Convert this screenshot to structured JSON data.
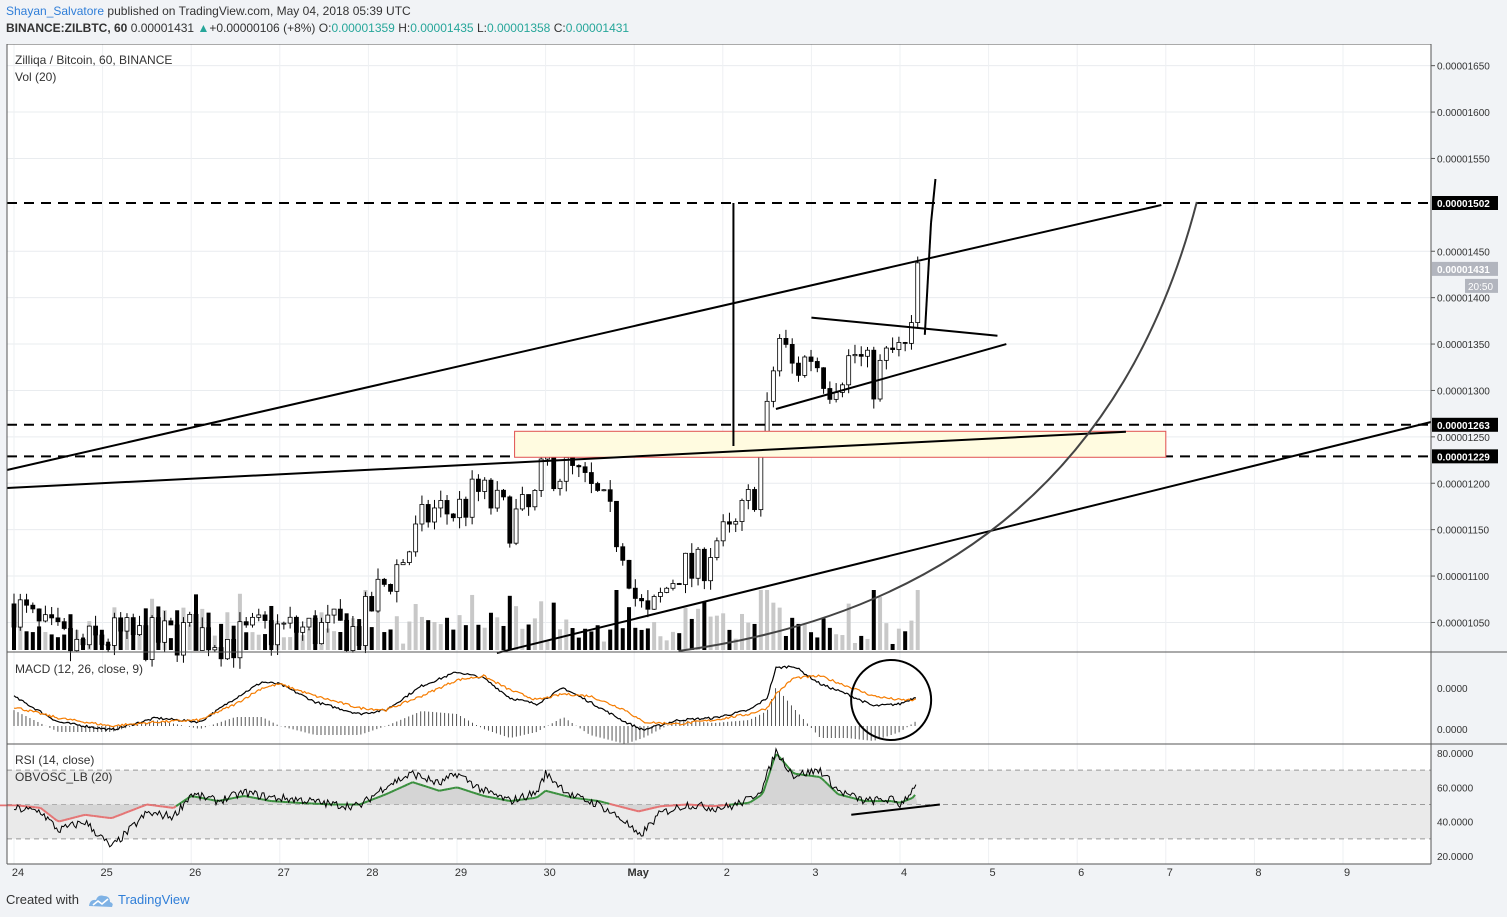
{
  "header": {
    "author": "Shayan_Salvatore",
    "published": "published on TradingView.com, May 04, 2018 05:39 UTC",
    "symbol": "BINANCE:ZILBTC, 60",
    "last": "0.00001431",
    "change": "+0.00000106 (+8%)",
    "o_label": "O:",
    "o_value": "0.00001359",
    "h_label": "H:",
    "h_value": "0.00001435",
    "l_label": "L:",
    "l_value": "0.00001358",
    "c_label": "C:",
    "c_value": "0.00001431"
  },
  "footer": {
    "created_with": "Created with",
    "brand": "TradingView"
  },
  "colors": {
    "background": "#ffffff",
    "axis_bg": "#f1f3f6",
    "up_candle": "#ffffff",
    "down_candle": "#000000",
    "macd_line": "#000000",
    "signal_line": "#f57c00",
    "rsi_line": "#000000",
    "obv_positive": "#388e3c",
    "obv_negative": "#e57373",
    "zone_fill": "#fffbe0",
    "zone_border": "#e05050"
  },
  "chart_data": [
    {
      "type": "candlestick",
      "title": "Zilliqa / Bitcoin, 60, BINANCE",
      "volume_label": "Vol (20)",
      "x_ticks": [
        "24",
        "25",
        "26",
        "27",
        "28",
        "29",
        "30",
        "May",
        "2",
        "3",
        "4",
        "5",
        "6",
        "7",
        "8",
        "9"
      ],
      "y_ticks": [
        "0.00001650",
        "0.00001600",
        "0.00001550",
        "0.00001450",
        "0.00001400",
        "0.00001350",
        "0.00001300",
        "0.00001250",
        "0.00001200",
        "0.00001150",
        "0.00001100",
        "0.00001050"
      ],
      "ylim": [
        1.02e-05,
        1.68e-05
      ],
      "price_labels": [
        {
          "value": 1.502e-05,
          "text": "0.00001502",
          "style": "black"
        },
        {
          "value": 1.431e-05,
          "text": "0.00001431",
          "style": "gray"
        },
        {
          "value": 1.263e-05,
          "text": "0.00001263",
          "style": "black"
        },
        {
          "value": 1.229e-05,
          "text": "0.00001229",
          "style": "black"
        }
      ],
      "countdown": "20:50",
      "horizontal_levels": [
        1.502e-05,
        1.263e-05,
        1.229e-05
      ],
      "zone": {
        "top": 1.256e-05,
        "bottom": 1.228e-05,
        "from_day": 29.65,
        "to_day": 37.0
      },
      "series": [
        {
          "name": "ZILBTC",
          "anchors": [
            [
              23.95,
              1.075e-05
            ],
            [
              24.3,
              1.04e-05
            ],
            [
              24.7,
              1.02e-05
            ],
            [
              25.1,
              1.035e-05
            ],
            [
              25.6,
              1.03e-05
            ],
            [
              26.0,
              1.04e-05
            ],
            [
              26.5,
              1.03e-05
            ],
            [
              26.8,
              1.04e-05
            ],
            [
              27.0,
              1.042e-05
            ],
            [
              27.5,
              1.042e-05
            ],
            [
              27.9,
              1.04e-05
            ],
            [
              28.1,
              1.08e-05
            ],
            [
              28.4,
              1.12e-05
            ],
            [
              28.7,
              1.17e-05
            ],
            [
              29.0,
              1.17e-05
            ],
            [
              29.25,
              1.19e-05
            ],
            [
              29.6,
              1.16e-05
            ],
            [
              29.85,
              1.17e-05
            ],
            [
              30.0,
              1.22e-05
            ],
            [
              30.3,
              1.21e-05
            ],
            [
              30.6,
              1.18e-05
            ],
            [
              30.9,
              1.13e-05
            ],
            [
              31.0,
              1.08e-05
            ],
            [
              31.15,
              1.05e-05
            ],
            [
              31.5,
              1.11e-05
            ],
            [
              31.7,
              1.1e-05
            ],
            [
              31.9,
              1.14e-05
            ],
            [
              32.1,
              1.14e-05
            ],
            [
              32.35,
              1.19e-05
            ],
            [
              32.5,
              1.27e-05
            ],
            [
              32.62,
              1.36e-05
            ],
            [
              32.8,
              1.32e-05
            ],
            [
              33.0,
              1.34e-05
            ],
            [
              33.2,
              1.31e-05
            ],
            [
              33.5,
              1.34e-05
            ],
            [
              33.7,
              1.31e-05
            ],
            [
              33.9,
              1.34e-05
            ],
            [
              34.05,
              1.34e-05
            ],
            [
              34.15,
              1.36e-05
            ],
            [
              34.2,
              1.431e-05
            ]
          ]
        }
      ]
    },
    {
      "type": "line",
      "title": "MACD (12, 26, close, 9)",
      "y_ticks": [
        "0.0000",
        "0.0000"
      ],
      "series": [
        {
          "name": "MACD",
          "anchors": [
            [
              23.95,
              0.3
            ],
            [
              24.5,
              -0.4
            ],
            [
              25.1,
              -0.6
            ],
            [
              25.6,
              -0.3
            ],
            [
              26.1,
              -0.4
            ],
            [
              26.5,
              0.2
            ],
            [
              26.8,
              0.6
            ],
            [
              27.0,
              0.55
            ],
            [
              27.4,
              0.1
            ],
            [
              27.9,
              -0.2
            ],
            [
              28.2,
              -0.1
            ],
            [
              28.6,
              0.5
            ],
            [
              29.0,
              0.85
            ],
            [
              29.3,
              0.7
            ],
            [
              29.6,
              0.2
            ],
            [
              29.9,
              0.05
            ],
            [
              30.2,
              0.45
            ],
            [
              30.5,
              0.1
            ],
            [
              30.9,
              -0.4
            ],
            [
              31.1,
              -0.6
            ],
            [
              31.5,
              -0.35
            ],
            [
              31.9,
              -0.3
            ],
            [
              32.3,
              -0.1
            ],
            [
              32.5,
              0.2
            ],
            [
              32.6,
              0.95
            ],
            [
              32.8,
              1.0
            ],
            [
              33.1,
              0.55
            ],
            [
              33.4,
              0.3
            ],
            [
              33.7,
              0.0
            ],
            [
              34.0,
              0.05
            ],
            [
              34.2,
              0.25
            ]
          ]
        },
        {
          "name": "Signal",
          "anchors": [
            [
              23.95,
              0.0
            ],
            [
              24.5,
              -0.3
            ],
            [
              25.1,
              -0.5
            ],
            [
              25.6,
              -0.4
            ],
            [
              26.1,
              -0.35
            ],
            [
              26.5,
              0.05
            ],
            [
              26.8,
              0.45
            ],
            [
              27.0,
              0.55
            ],
            [
              27.4,
              0.25
            ],
            [
              27.9,
              -0.05
            ],
            [
              28.2,
              -0.1
            ],
            [
              28.6,
              0.25
            ],
            [
              29.0,
              0.65
            ],
            [
              29.3,
              0.75
            ],
            [
              29.6,
              0.4
            ],
            [
              29.9,
              0.15
            ],
            [
              30.2,
              0.3
            ],
            [
              30.5,
              0.25
            ],
            [
              30.9,
              -0.1
            ],
            [
              31.1,
              -0.4
            ],
            [
              31.5,
              -0.45
            ],
            [
              31.9,
              -0.35
            ],
            [
              32.3,
              -0.2
            ],
            [
              32.5,
              -0.05
            ],
            [
              32.6,
              0.3
            ],
            [
              32.8,
              0.7
            ],
            [
              33.1,
              0.75
            ],
            [
              33.4,
              0.5
            ],
            [
              33.7,
              0.25
            ],
            [
              34.0,
              0.15
            ],
            [
              34.2,
              0.15
            ]
          ]
        }
      ]
    },
    {
      "type": "line",
      "title": "RSI (14, close)",
      "subtitle": "OBVOSC_LB (20)",
      "y_ticks": [
        "80.0000",
        "60.0000",
        "40.0000",
        "20.0000"
      ],
      "ylim": [
        19,
        85
      ],
      "levels": [
        70,
        50,
        30
      ],
      "series": [
        {
          "name": "RSI",
          "anchors": [
            [
              23.95,
              48
            ],
            [
              24.3,
              46
            ],
            [
              24.5,
              35
            ],
            [
              24.8,
              40
            ],
            [
              25.1,
              25
            ],
            [
              25.5,
              45
            ],
            [
              25.8,
              43
            ],
            [
              26.0,
              56
            ],
            [
              26.3,
              52
            ],
            [
              26.6,
              57
            ],
            [
              26.9,
              54
            ],
            [
              27.2,
              53
            ],
            [
              27.6,
              50
            ],
            [
              27.9,
              49
            ],
            [
              28.2,
              61
            ],
            [
              28.5,
              68
            ],
            [
              28.8,
              62
            ],
            [
              29.0,
              68
            ],
            [
              29.3,
              58
            ],
            [
              29.6,
              52
            ],
            [
              29.9,
              57
            ],
            [
              30.0,
              68
            ],
            [
              30.3,
              55
            ],
            [
              30.6,
              50
            ],
            [
              30.9,
              40
            ],
            [
              31.05,
              31
            ],
            [
              31.3,
              45
            ],
            [
              31.6,
              50
            ],
            [
              31.9,
              48
            ],
            [
              32.1,
              49
            ],
            [
              32.3,
              53
            ],
            [
              32.45,
              60
            ],
            [
              32.6,
              81
            ],
            [
              32.8,
              67
            ],
            [
              33.1,
              70
            ],
            [
              33.3,
              58
            ],
            [
              33.6,
              52
            ],
            [
              33.9,
              53
            ],
            [
              34.0,
              50
            ],
            [
              34.15,
              59
            ],
            [
              34.2,
              66
            ]
          ]
        },
        {
          "name": "OBVOSC_LB",
          "anchors": [
            [
              23.95,
              50
            ],
            [
              24.3,
              48
            ],
            [
              24.5,
              40
            ],
            [
              24.8,
              44
            ],
            [
              25.1,
              42
            ],
            [
              25.5,
              50
            ],
            [
              25.8,
              48
            ],
            [
              26.0,
              55
            ],
            [
              26.3,
              52
            ],
            [
              26.6,
              55
            ],
            [
              26.9,
              52
            ],
            [
              27.2,
              51
            ],
            [
              27.6,
              50
            ],
            [
              27.9,
              50
            ],
            [
              28.2,
              56
            ],
            [
              28.5,
              63
            ],
            [
              28.8,
              58
            ],
            [
              29.0,
              60
            ],
            [
              29.3,
              55
            ],
            [
              29.6,
              52
            ],
            [
              29.9,
              54
            ],
            [
              30.0,
              58
            ],
            [
              30.3,
              54
            ],
            [
              30.6,
              52
            ],
            [
              30.9,
              48
            ],
            [
              31.05,
              46
            ],
            [
              31.3,
              49
            ],
            [
              31.6,
              50
            ],
            [
              31.9,
              49
            ],
            [
              32.1,
              50
            ],
            [
              32.3,
              51
            ],
            [
              32.45,
              56
            ],
            [
              32.6,
              80
            ],
            [
              32.8,
              68
            ],
            [
              33.1,
              66
            ],
            [
              33.3,
              56
            ],
            [
              33.6,
              52
            ],
            [
              33.9,
              52
            ],
            [
              34.0,
              51
            ],
            [
              34.15,
              54
            ],
            [
              34.2,
              58
            ]
          ]
        }
      ]
    }
  ]
}
